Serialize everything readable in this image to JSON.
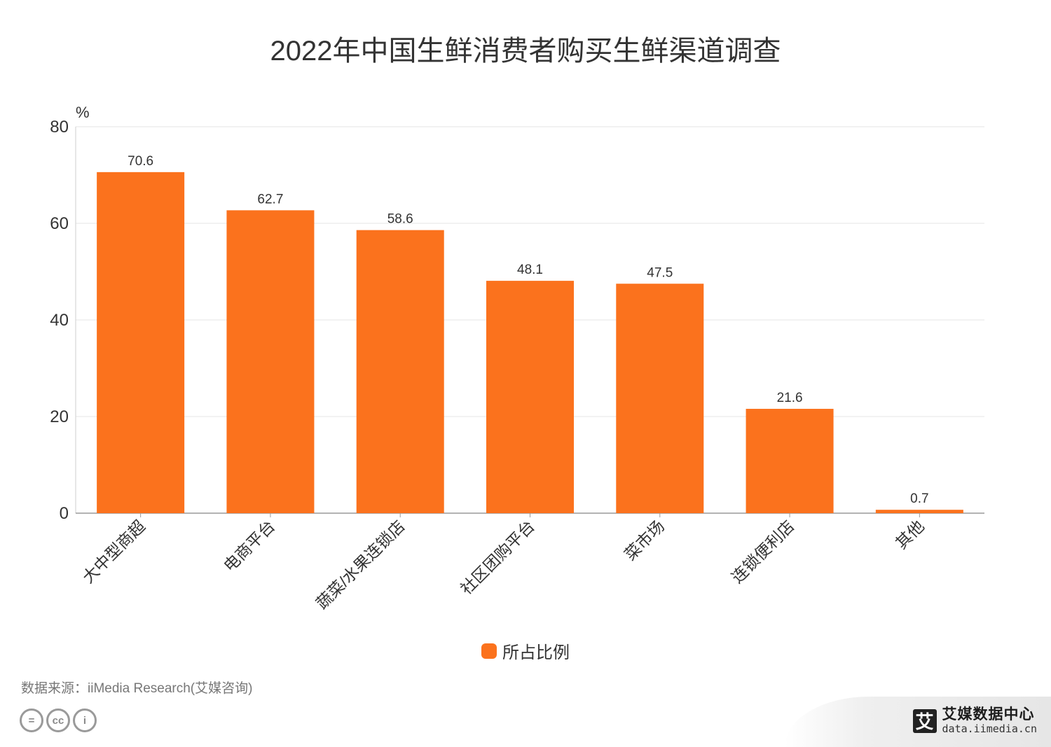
{
  "title": "2022年中国生鲜消费者购买生鲜渠道调查",
  "chart_data": {
    "type": "bar",
    "title": "2022年中国生鲜消费者购买生鲜渠道调查",
    "ylabel": "%",
    "xlabel": "",
    "ylim": [
      0,
      80
    ],
    "yticks": [
      0,
      20,
      40,
      60,
      80
    ],
    "grid": true,
    "categories": [
      "大中型商超",
      "电商平台",
      "蔬菜/水果连锁店",
      "社区团购平台",
      "菜市场",
      "连锁便利店",
      "其他"
    ],
    "series": [
      {
        "name": "所占比例",
        "values": [
          70.6,
          62.7,
          58.6,
          48.1,
          47.5,
          21.6,
          0.7
        ],
        "color": "#fb721d"
      }
    ],
    "legend_position": "bottom-center",
    "data_labels": true
  },
  "legend": {
    "label": "所占比例"
  },
  "source": "数据来源：iiMedia Research(艾媒咨询)",
  "brand": {
    "logo_char": "艾",
    "name": "艾媒数据中心",
    "url": "data.iimedia.cn"
  },
  "cc_icons": [
    "equals-icon",
    "cc-icon",
    "person-icon"
  ],
  "cc_glyphs": {
    "equals": "=",
    "cc": "cc",
    "person": "i"
  }
}
